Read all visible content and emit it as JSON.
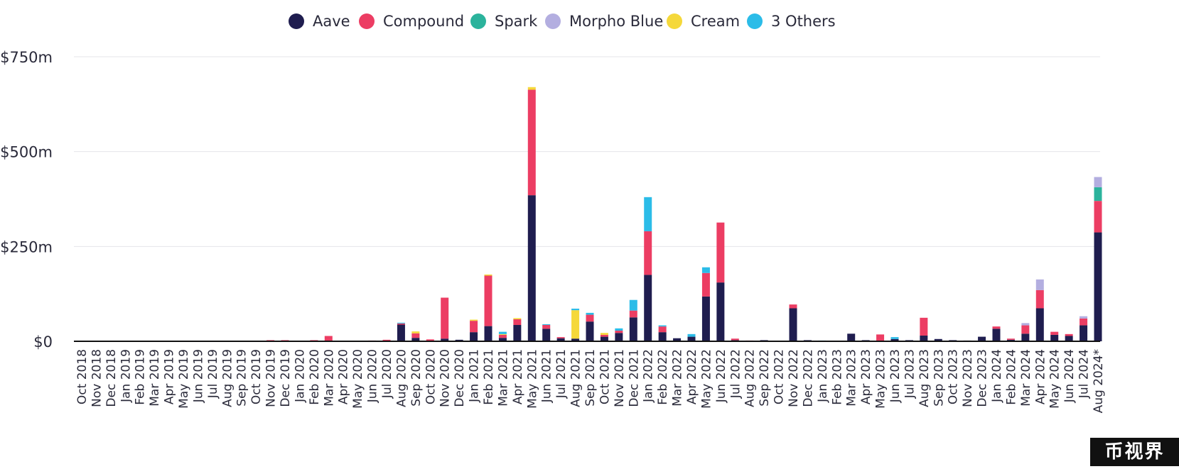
{
  "watermark_text": "币视界",
  "chart_data": {
    "type": "bar",
    "stacked": true,
    "title": "",
    "xlabel": "",
    "ylabel": "",
    "ylim": [
      0,
      750
    ],
    "grid": true,
    "legend_position": "top-center",
    "y_ticks": [
      {
        "value": 0,
        "label": "$0"
      },
      {
        "value": 250,
        "label": "$250m"
      },
      {
        "value": 500,
        "label": "$500m"
      },
      {
        "value": 750,
        "label": "$750m"
      }
    ],
    "categories": [
      "Oct 2018",
      "Nov 2018",
      "Dec 2018",
      "Jan 2019",
      "Feb 2019",
      "Mar 2019",
      "Apr 2019",
      "May 2019",
      "Jun 2019",
      "Jul 2019",
      "Aug 2019",
      "Sep 2019",
      "Oct 2019",
      "Nov 2019",
      "Dec 2019",
      "Jan 2020",
      "Feb 2020",
      "Mar 2020",
      "Apr 2020",
      "May 2020",
      "Jun 2020",
      "Jul 2020",
      "Aug 2020",
      "Sep 2020",
      "Oct 2020",
      "Nov 2020",
      "Dec 2020",
      "Jan 2021",
      "Feb 2021",
      "Mar 2021",
      "Apr 2021",
      "May 2021",
      "Jun 2021",
      "Jul 2021",
      "Aug 2021",
      "Sep 2021",
      "Oct 2021",
      "Nov 2021",
      "Dec 2021",
      "Jan 2022",
      "Feb 2022",
      "Mar 2022",
      "Apr 2022",
      "May 2022",
      "Jun 2022",
      "Jul 2022",
      "Aug 2022",
      "Sep 2022",
      "Oct 2022",
      "Nov 2022",
      "Dec 2022",
      "Jan 2023",
      "Feb 2023",
      "Mar 2023",
      "Apr 2023",
      "May 2023",
      "Jun 2023",
      "Jul 2023",
      "Aug 2023",
      "Sep 2023",
      "Oct 2023",
      "Nov 2023",
      "Dec 2023",
      "Jan 2024",
      "Feb 2024",
      "Mar 2024",
      "Apr 2024",
      "May 2024",
      "Jun 2024",
      "Jul 2024",
      "Aug 2024*"
    ],
    "series": [
      {
        "name": "Aave",
        "color": "#1f1d4f",
        "values": [
          0,
          0,
          0,
          0,
          0,
          0,
          0,
          0,
          0,
          0,
          0,
          0,
          0,
          0,
          0,
          0,
          0,
          0,
          0,
          0,
          0,
          0,
          44,
          9,
          0,
          7,
          4,
          24,
          40,
          9,
          43,
          385,
          33,
          8,
          7,
          52,
          12,
          22,
          63,
          175,
          24,
          8,
          12,
          118,
          155,
          3,
          0,
          3,
          0,
          87,
          3,
          0,
          0,
          20,
          3,
          0,
          6,
          3,
          15,
          6,
          3,
          2,
          12,
          33,
          4,
          20,
          87,
          17,
          14,
          42,
          287
        ]
      },
      {
        "name": "Compound",
        "color": "#ec3d63",
        "values": [
          0,
          0,
          0,
          0,
          0,
          0,
          0,
          0,
          0,
          0,
          0,
          0,
          0,
          3,
          3,
          0,
          3,
          14,
          0,
          0,
          2,
          4,
          3,
          12,
          5,
          108,
          0,
          30,
          133,
          8,
          15,
          278,
          10,
          3,
          0,
          18,
          5,
          6,
          18,
          115,
          15,
          0,
          0,
          62,
          158,
          4,
          2,
          0,
          0,
          10,
          0,
          0,
          0,
          0,
          0,
          18,
          0,
          0,
          47,
          0,
          0,
          0,
          0,
          6,
          3,
          22,
          48,
          8,
          5,
          18,
          83
        ]
      },
      {
        "name": "Spark",
        "color": "#2bb39c",
        "values": [
          0,
          0,
          0,
          0,
          0,
          0,
          0,
          0,
          0,
          0,
          0,
          0,
          0,
          0,
          0,
          0,
          0,
          0,
          0,
          0,
          0,
          0,
          0,
          0,
          0,
          0,
          0,
          0,
          0,
          0,
          0,
          0,
          0,
          0,
          0,
          0,
          0,
          0,
          0,
          0,
          0,
          0,
          0,
          0,
          0,
          0,
          0,
          0,
          0,
          0,
          0,
          0,
          0,
          0,
          0,
          0,
          0,
          0,
          0,
          0,
          0,
          0,
          0,
          0,
          0,
          0,
          0,
          0,
          0,
          0,
          36
        ]
      },
      {
        "name": "Morpho Blue",
        "color": "#b3aee0",
        "values": [
          0,
          0,
          0,
          0,
          0,
          0,
          0,
          0,
          0,
          0,
          0,
          0,
          0,
          0,
          0,
          0,
          0,
          0,
          0,
          0,
          0,
          0,
          0,
          0,
          0,
          0,
          0,
          0,
          0,
          0,
          0,
          0,
          0,
          0,
          0,
          0,
          0,
          0,
          0,
          0,
          0,
          0,
          0,
          0,
          0,
          0,
          0,
          0,
          0,
          0,
          0,
          0,
          0,
          0,
          0,
          0,
          0,
          0,
          0,
          0,
          0,
          0,
          0,
          0,
          0,
          6,
          28,
          0,
          0,
          6,
          27
        ]
      },
      {
        "name": "Cream",
        "color": "#f5d83a",
        "values": [
          0,
          0,
          0,
          0,
          0,
          0,
          0,
          0,
          0,
          0,
          0,
          0,
          0,
          0,
          0,
          0,
          0,
          0,
          0,
          0,
          0,
          0,
          0,
          5,
          0,
          0,
          0,
          3,
          3,
          2,
          3,
          7,
          0,
          0,
          75,
          0,
          5,
          0,
          0,
          0,
          0,
          0,
          0,
          0,
          0,
          0,
          0,
          0,
          0,
          0,
          0,
          0,
          0,
          0,
          0,
          0,
          0,
          0,
          0,
          0,
          0,
          0,
          0,
          0,
          0,
          0,
          0,
          0,
          0,
          0,
          0
        ]
      },
      {
        "name": "3 Others",
        "color": "#2bbce8",
        "values": [
          0,
          0,
          0,
          0,
          0,
          0,
          0,
          0,
          0,
          0,
          0,
          0,
          0,
          0,
          0,
          0,
          0,
          0,
          0,
          0,
          0,
          0,
          2,
          0,
          0,
          0,
          0,
          0,
          0,
          6,
          0,
          0,
          2,
          0,
          4,
          5,
          0,
          6,
          28,
          90,
          3,
          0,
          7,
          15,
          0,
          0,
          0,
          0,
          0,
          0,
          0,
          2,
          0,
          0,
          0,
          0,
          5,
          0,
          0,
          0,
          0,
          0,
          0,
          0,
          0,
          0,
          0,
          0,
          0,
          0,
          0
        ]
      }
    ]
  }
}
